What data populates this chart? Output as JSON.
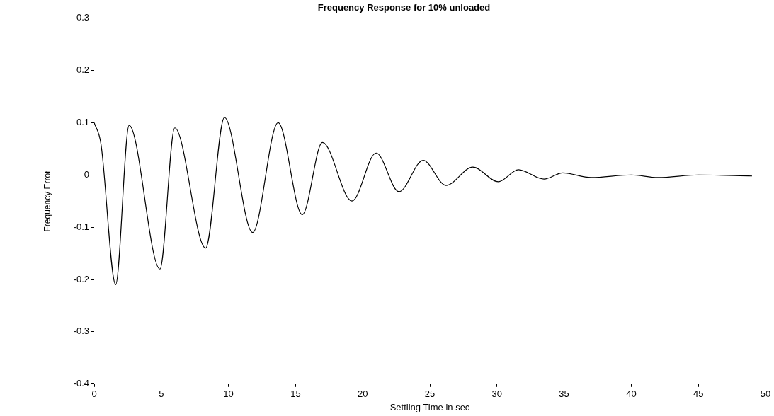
{
  "chart_data": {
    "type": "line",
    "title": "Frequency Response for 10% unloaded",
    "xlabel": "Settling Time in sec",
    "ylabel": "Frequency Error",
    "xlim": [
      0,
      50
    ],
    "xticks": [
      0,
      5,
      10,
      15,
      20,
      25,
      30,
      35,
      40,
      45,
      50
    ],
    "ylim": [
      -0.4,
      0.3
    ],
    "yticks": [
      -0.4,
      -0.3,
      -0.2,
      -0.1,
      0,
      0.1,
      0.2,
      0.3
    ],
    "x": [
      0,
      0.5,
      1.6,
      2.6,
      4.9,
      6,
      8.3,
      9.7,
      11.8,
      13.7,
      15.5,
      17,
      19.2,
      21,
      22.7,
      24.5,
      26.2,
      28.2,
      30.1,
      31.6,
      33.5,
      34.9,
      37,
      40,
      42,
      45,
      49
    ],
    "series": [
      {
        "color": "#000000",
        "values": [
          0.1,
          0.06,
          -0.21,
          0.095,
          -0.18,
          0.09,
          -0.14,
          0.11,
          -0.11,
          0.1,
          -0.076,
          0.062,
          -0.05,
          0.042,
          -0.032,
          0.028,
          -0.02,
          0.015,
          -0.013,
          0.01,
          -0.008,
          0.004,
          -0.005,
          0,
          -0.005,
          0,
          -0.002
        ]
      }
    ],
    "marker": "none",
    "line_style": "solid",
    "legend": false
  }
}
